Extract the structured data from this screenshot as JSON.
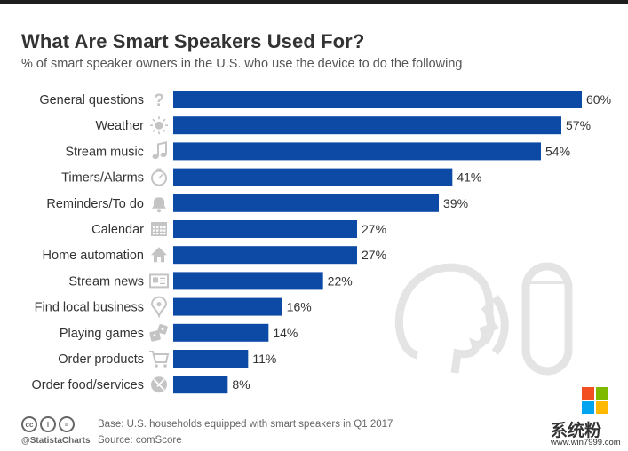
{
  "title": "What Are Smart Speakers Used For?",
  "subtitle": "% of smart speaker owners in the U.S. who use the device to do the following",
  "chart_data": {
    "type": "bar",
    "orientation": "horizontal",
    "title": "What Are Smart Speakers Used For?",
    "subtitle": "% of smart speaker owners in the U.S. who use the device to do the following",
    "categories": [
      "General questions",
      "Weather",
      "Stream music",
      "Timers/Alarms",
      "Reminders/To do",
      "Calendar",
      "Home automation",
      "Stream news",
      "Find local business",
      "Playing games",
      "Order products",
      "Order food/services"
    ],
    "values": [
      60,
      57,
      54,
      41,
      39,
      27,
      27,
      22,
      16,
      14,
      11,
      8
    ],
    "value_labels": [
      "60%",
      "57%",
      "54%",
      "41%",
      "39%",
      "27%",
      "27%",
      "22%",
      "16%",
      "14%",
      "11%",
      "8%"
    ],
    "icons": [
      "question-icon",
      "sun-icon",
      "music-note-icon",
      "stopwatch-icon",
      "bell-icon",
      "calendar-icon",
      "house-icon",
      "newspaper-icon",
      "map-pin-icon",
      "dice-icon",
      "shopping-cart-icon",
      "plate-icon"
    ],
    "xlim": [
      0,
      60
    ],
    "unit": "%",
    "bar_color": "#0d4aa6"
  },
  "footer": {
    "cc_labels": [
      "cc",
      "i",
      "="
    ],
    "handle": "@StatistaCharts",
    "base": "Base: U.S. households equipped with smart speakers in Q1 2017",
    "source": "Source: comScore"
  },
  "watermark": {
    "text": "系统粉",
    "url": "www.win7999.com",
    "logo_colors": [
      "#f25022",
      "#7fba00",
      "#00a4ef",
      "#ffb900"
    ]
  }
}
